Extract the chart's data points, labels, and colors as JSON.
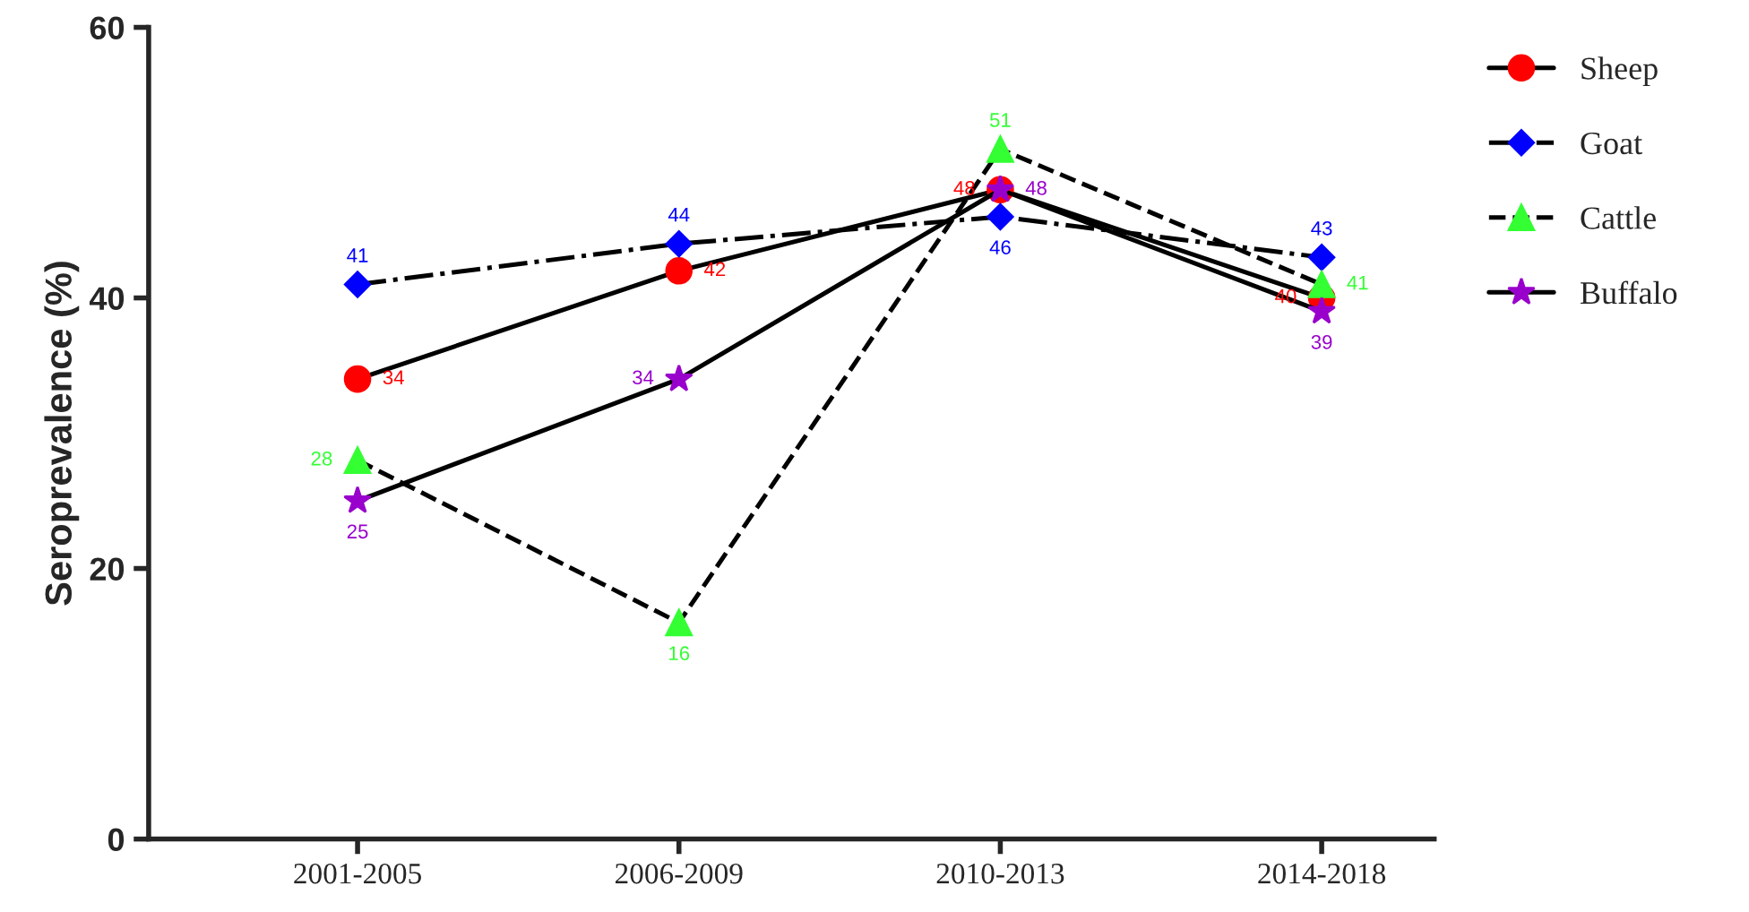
{
  "chart_data": {
    "type": "line",
    "ylabel": "Seroprevalence (%)",
    "categories": [
      "2001-2005",
      "2006-2009",
      "2010-2013",
      "2014-2018"
    ],
    "series": [
      {
        "name": "Sheep",
        "color": "#ff0000",
        "values": [
          34,
          42,
          48,
          40
        ],
        "marker": "circle",
        "line_style": "solid"
      },
      {
        "name": "Goat",
        "color": "#0000ff",
        "values": [
          41,
          44,
          46,
          43
        ],
        "marker": "diamond",
        "line_style": "dashdot"
      },
      {
        "name": "Cattle",
        "color": "#33ff33",
        "values": [
          28,
          16,
          51,
          41
        ],
        "marker": "triangle",
        "line_style": "dashed"
      },
      {
        "name": "Buffalo",
        "color": "#9900cc",
        "values": [
          25,
          34,
          48,
          39
        ],
        "marker": "star",
        "line_style": "solid"
      }
    ],
    "ylim": [
      0,
      60
    ],
    "yticks": [
      0,
      20,
      40,
      60
    ],
    "data_labels": true,
    "legend": "top right",
    "grid": false
  }
}
